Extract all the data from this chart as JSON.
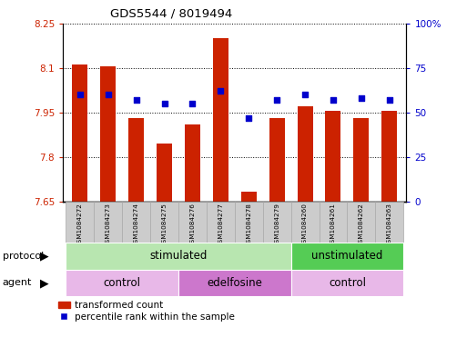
{
  "title": "GDS5544 / 8019494",
  "samples": [
    "GSM1084272",
    "GSM1084273",
    "GSM1084274",
    "GSM1084275",
    "GSM1084276",
    "GSM1084277",
    "GSM1084278",
    "GSM1084279",
    "GSM1084260",
    "GSM1084261",
    "GSM1084262",
    "GSM1084263"
  ],
  "bar_values": [
    8.11,
    8.105,
    7.93,
    7.845,
    7.91,
    8.2,
    7.685,
    7.93,
    7.97,
    7.955,
    7.93,
    7.955
  ],
  "dot_values": [
    60.0,
    60.0,
    57.0,
    55.0,
    55.0,
    62.0,
    47.0,
    57.0,
    60.0,
    57.0,
    58.0,
    57.0
  ],
  "bar_bottom": 7.65,
  "ylim_left": [
    7.65,
    8.25
  ],
  "ylim_right": [
    0,
    100
  ],
  "yticks_left": [
    7.65,
    7.8,
    7.95,
    8.1,
    8.25
  ],
  "yticks_left_labels": [
    "7.65",
    "7.8",
    "7.95",
    "8.1",
    "8.25"
  ],
  "yticks_right": [
    0,
    25,
    50,
    75,
    100
  ],
  "yticks_right_labels": [
    "0",
    "25",
    "50",
    "75",
    "100%"
  ],
  "bar_color": "#cc2200",
  "dot_color": "#0000cc",
  "protocol_groups": [
    {
      "label": "stimulated",
      "start": 0,
      "end": 8,
      "color": "#b8e6b0"
    },
    {
      "label": "unstimulated",
      "start": 8,
      "end": 12,
      "color": "#55cc55"
    }
  ],
  "agent_groups": [
    {
      "label": "control",
      "start": 0,
      "end": 4,
      "color": "#e8b8e8"
    },
    {
      "label": "edelfosine",
      "start": 4,
      "end": 8,
      "color": "#cc77cc"
    },
    {
      "label": "control",
      "start": 8,
      "end": 12,
      "color": "#e8b8e8"
    }
  ],
  "legend_bar_label": "transformed count",
  "legend_dot_label": "percentile rank within the sample",
  "protocol_label": "protocol",
  "agent_label": "agent",
  "left_label_color": "#cc2200",
  "right_label_color": "#0000cc",
  "grid_color": "#000000",
  "sample_box_color": "#cccccc",
  "sample_box_edge": "#aaaaaa"
}
